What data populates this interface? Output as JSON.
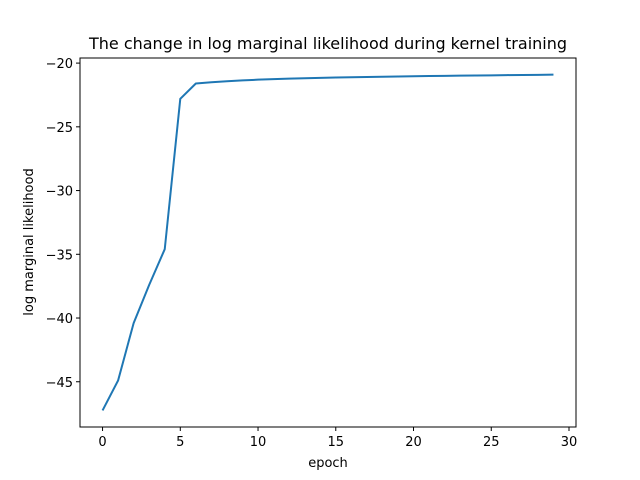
{
  "chart_data": {
    "type": "line",
    "title": "The change in log marginal likelihood during kernel training",
    "xlabel": "epoch",
    "ylabel": "log marginal likelihood",
    "xlim": [
      -1.45,
      30.45
    ],
    "ylim": [
      -48.55,
      -19.6
    ],
    "xticks": [
      0,
      5,
      10,
      15,
      20,
      25,
      30
    ],
    "yticks": [
      -45,
      -40,
      -35,
      -30,
      -25,
      -20
    ],
    "grid": false,
    "line_color": "#1f77b4",
    "series": [
      {
        "x": [
          0,
          1,
          2,
          3,
          4,
          5,
          6,
          7,
          8,
          9,
          10,
          11,
          12,
          13,
          14,
          15,
          16,
          17,
          18,
          19,
          20,
          21,
          22,
          23,
          24,
          25,
          26,
          27,
          28,
          29
        ],
        "values": [
          -47.25,
          -44.9,
          -40.4,
          -37.4,
          -34.6,
          -22.8,
          -21.6,
          -21.5,
          -21.42,
          -21.36,
          -21.3,
          -21.26,
          -21.22,
          -21.19,
          -21.16,
          -21.13,
          -21.11,
          -21.09,
          -21.07,
          -21.05,
          -21.03,
          -21.01,
          -21.0,
          -20.98,
          -20.97,
          -20.96,
          -20.94,
          -20.93,
          -20.92,
          -20.9
        ]
      }
    ]
  }
}
